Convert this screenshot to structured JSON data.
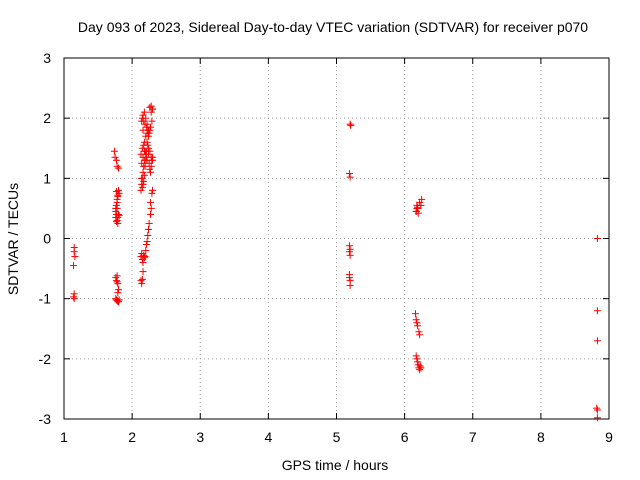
{
  "chart_data": {
    "type": "scatter",
    "title": "Day 093 of 2023, Sidereal Day-to-day VTEC variation (SDTVAR) for receiver p070",
    "xlabel": "GPS time / hours",
    "ylabel": "SDTVAR / TECUs",
    "xlim": [
      1,
      9
    ],
    "ylim": [
      -3,
      3
    ],
    "xticks": [
      1,
      2,
      3,
      4,
      5,
      6,
      7,
      8,
      9
    ],
    "yticks": [
      -3,
      -2,
      -1,
      0,
      1,
      2,
      3
    ],
    "xtick_labels": [
      "1",
      "2",
      "3",
      "4",
      "5",
      "6",
      "7",
      "8",
      "9"
    ],
    "ytick_labels": [
      "-3",
      "-2",
      "-1",
      "0",
      "1",
      "2",
      "3"
    ],
    "grid": true,
    "marker": "+",
    "color": "#ff0000",
    "series": [
      {
        "name": "SDTVAR",
        "x": [
          1.15,
          1.15,
          1.16,
          1.14,
          1.15,
          1.14,
          1.15,
          1.74,
          1.75,
          1.77,
          1.78,
          1.8,
          1.8,
          1.81,
          1.79,
          1.78,
          1.78,
          1.76,
          1.77,
          1.76,
          1.78,
          1.79,
          1.8,
          1.77,
          1.79,
          1.81,
          1.78,
          1.76,
          1.77,
          1.78,
          1.79,
          1.76,
          1.77,
          1.78,
          1.79,
          1.8,
          1.81,
          1.79,
          1.8,
          1.76,
          1.77,
          1.78,
          1.79,
          1.77,
          2.13,
          2.14,
          2.15,
          2.16,
          2.13,
          2.14,
          2.15,
          2.16,
          2.17,
          2.18,
          2.13,
          2.15,
          2.17,
          2.19,
          2.21,
          2.14,
          2.16,
          2.18,
          2.2,
          2.22,
          2.24,
          2.26,
          2.28,
          2.3,
          2.15,
          2.17,
          2.19,
          2.21,
          2.23,
          2.25,
          2.27,
          2.29,
          2.16,
          2.18,
          2.2,
          2.22,
          2.24,
          2.26,
          2.28,
          2.3,
          2.14,
          2.16,
          2.18,
          2.2,
          2.22,
          2.24,
          2.26,
          2.28,
          2.3,
          2.27,
          2.28,
          2.29,
          2.3,
          2.27,
          2.25,
          2.24,
          2.23,
          2.22,
          2.21,
          2.2,
          2.19,
          2.18,
          2.17,
          2.16,
          2.15,
          2.14,
          2.13,
          2.3,
          2.29,
          2.28,
          2.27,
          2.26,
          2.25,
          2.24,
          2.23,
          2.22,
          2.21,
          2.2,
          2.19,
          2.18,
          2.17,
          2.15,
          2.14,
          2.16,
          5.2,
          5.21,
          5.19,
          5.2,
          5.19,
          5.2,
          5.19,
          5.2,
          5.19,
          5.19,
          5.2,
          5.2,
          6.17,
          6.18,
          6.19,
          6.2,
          6.22,
          6.24,
          6.25,
          6.16,
          6.17,
          6.18,
          6.19,
          6.21,
          6.22,
          6.17,
          6.18,
          6.19,
          6.2,
          6.21,
          6.22,
          6.24,
          6.23,
          6.17,
          6.18,
          6.19,
          8.83,
          8.83,
          8.83,
          8.82,
          8.83,
          8.83
        ],
        "y": [
          -0.15,
          -0.22,
          -0.3,
          -0.45,
          -0.92,
          -0.97,
          -1.0,
          1.45,
          1.35,
          1.3,
          1.2,
          1.17,
          0.8,
          0.75,
          0.7,
          0.6,
          0.5,
          0.45,
          0.4,
          0.35,
          0.3,
          0.35,
          0.4,
          0.28,
          0.25,
          0.38,
          -0.62,
          -0.65,
          -0.7,
          -0.72,
          -0.75,
          -1.0,
          -1.02,
          -1.03,
          -1.05,
          -1.05,
          -1.02,
          -0.9,
          -0.85,
          0.5,
          0.55,
          0.65,
          0.72,
          0.78,
          -0.7,
          -0.75,
          -0.68,
          -0.55,
          0.8,
          0.9,
          1.0,
          1.1,
          1.2,
          1.3,
          1.4,
          1.5,
          1.55,
          1.45,
          1.35,
          1.25,
          1.35,
          1.45,
          1.4,
          1.3,
          1.5,
          1.45,
          1.35,
          1.3,
          2.0,
          1.95,
          1.9,
          1.85,
          1.8,
          1.75,
          1.85,
          1.95,
          2.05,
          2.1,
          2.0,
          1.9,
          1.7,
          1.8,
          2.1,
          2.15,
          1.95,
          1.8,
          1.6,
          1.7,
          1.75,
          1.8,
          2.18,
          2.2,
          2.15,
          0.6,
          0.5,
          0.75,
          0.8,
          0.4,
          0.25,
          0.15,
          0.05,
          -0.05,
          -0.1,
          -0.2,
          -0.3,
          -0.32,
          -0.28,
          -0.4,
          -0.35,
          -0.25,
          -0.3,
          1.35,
          1.3,
          1.2,
          1.1,
          1.15,
          1.25,
          1.4,
          1.55,
          1.6,
          1.45,
          1.3,
          1.2,
          1.05,
          0.95,
          0.85,
          1.0,
          0.9,
          1.9,
          1.88,
          1.08,
          1.02,
          -0.12,
          -0.18,
          -0.22,
          -0.28,
          -0.6,
          -0.65,
          -0.7,
          -0.78,
          0.45,
          0.55,
          0.5,
          0.42,
          0.6,
          0.55,
          0.65,
          -1.25,
          -1.35,
          -1.4,
          -1.45,
          -1.55,
          -1.6,
          -1.95,
          -2.0,
          -2.05,
          -2.1,
          -2.15,
          -2.18,
          -2.15,
          -2.12,
          0.45,
          0.5,
          0.52,
          0.0,
          -1.2,
          -1.7,
          -2.82,
          -2.85,
          -2.98
        ]
      }
    ]
  }
}
